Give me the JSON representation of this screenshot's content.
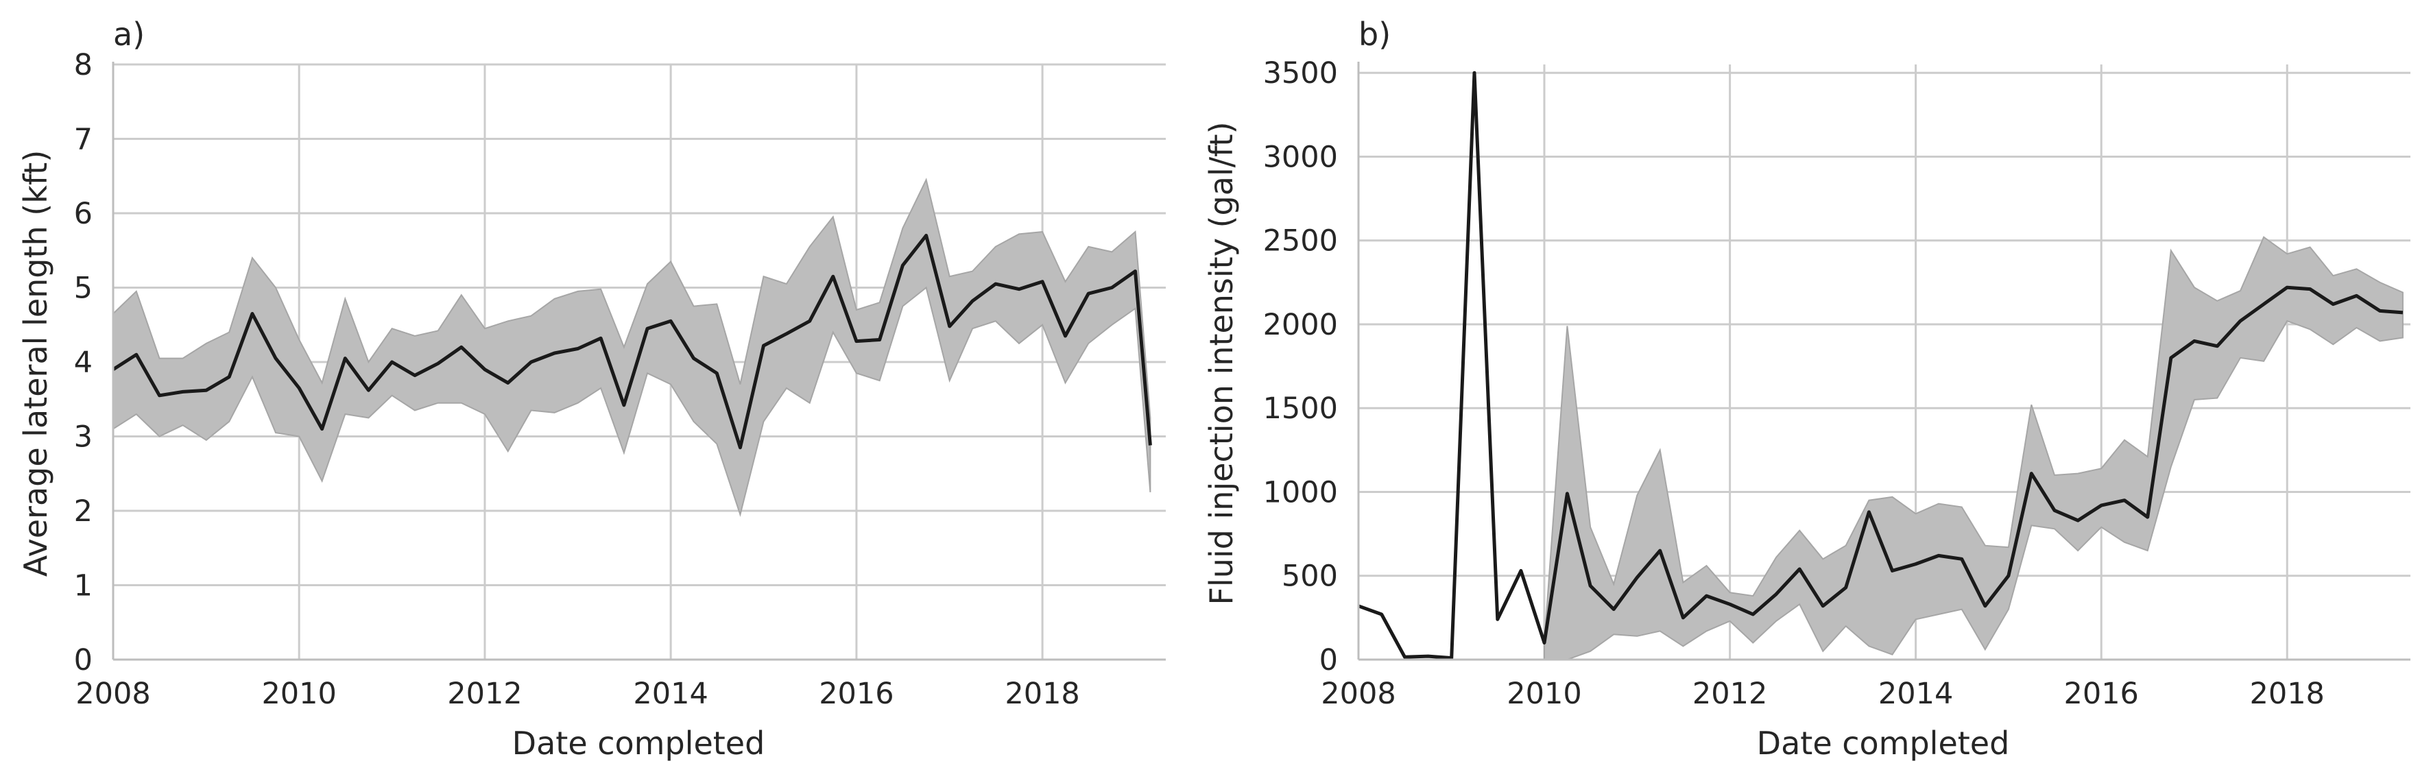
{
  "chart_data": [
    {
      "type": "line",
      "panel_label": "a)",
      "xlabel": "Date completed",
      "ylabel": "Average lateral length (kft)",
      "xlim": [
        "2008-01-01",
        "2019-05-01"
      ],
      "ylim": [
        0,
        8
      ],
      "x_ticks": [
        "2008",
        "2010",
        "2012",
        "2014",
        "2016",
        "2018"
      ],
      "y_ticks": [
        "0",
        "1",
        "2",
        "3",
        "4",
        "5",
        "6",
        "7",
        "8"
      ],
      "grid": true,
      "colors": {
        "line": "#1a1a1a",
        "band": "#bdbdbd"
      },
      "series": [
        {
          "x": [
            "2008-01-01",
            "2008-04-01",
            "2008-07-01",
            "2008-10-01",
            "2009-01-01",
            "2009-04-01",
            "2009-07-01",
            "2009-10-01",
            "2010-01-01",
            "2010-04-01",
            "2010-07-01",
            "2010-10-01",
            "2011-01-01",
            "2011-04-01",
            "2011-07-01",
            "2011-10-01",
            "2012-01-01",
            "2012-04-01",
            "2012-07-01",
            "2012-10-01",
            "2013-01-01",
            "2013-04-01",
            "2013-07-01",
            "2013-10-01",
            "2014-01-01",
            "2014-04-01",
            "2014-07-01",
            "2014-10-01",
            "2015-01-01",
            "2015-04-01",
            "2015-07-01",
            "2015-10-01",
            "2016-01-01",
            "2016-04-01",
            "2016-07-01",
            "2016-10-01",
            "2017-01-01",
            "2017-04-01",
            "2017-07-01",
            "2017-10-01",
            "2018-01-01",
            "2018-04-01",
            "2018-07-01",
            "2018-10-01",
            "2019-01-01",
            "2019-03-01"
          ],
          "values": [
            3.9,
            4.1,
            3.55,
            3.6,
            3.62,
            3.8,
            4.65,
            4.05,
            3.65,
            3.1,
            4.05,
            3.62,
            4.0,
            3.82,
            3.98,
            4.2,
            3.9,
            3.72,
            4.0,
            4.12,
            4.18,
            4.32,
            3.42,
            4.45,
            4.55,
            4.05,
            3.85,
            2.85,
            4.22,
            4.38,
            4.55,
            5.15,
            4.28,
            4.3,
            5.3,
            5.7,
            4.48,
            4.82,
            5.05,
            4.98,
            5.08,
            4.35,
            4.92,
            5.0,
            5.22,
            2.88
          ],
          "lower": [
            3.1,
            3.3,
            3.0,
            3.15,
            2.95,
            3.2,
            3.8,
            3.05,
            3.0,
            2.4,
            3.3,
            3.25,
            3.55,
            3.35,
            3.45,
            3.45,
            3.3,
            2.8,
            3.35,
            3.32,
            3.45,
            3.65,
            2.78,
            3.85,
            3.7,
            3.2,
            2.9,
            1.95,
            3.2,
            3.65,
            3.45,
            4.4,
            3.85,
            3.75,
            4.75,
            5.0,
            3.75,
            4.45,
            4.55,
            4.25,
            4.5,
            3.72,
            4.25,
            4.5,
            4.72,
            2.25
          ],
          "upper": [
            4.65,
            4.95,
            4.05,
            4.05,
            4.25,
            4.4,
            5.4,
            5.0,
            4.3,
            3.72,
            4.85,
            4.0,
            4.45,
            4.35,
            4.42,
            4.9,
            4.45,
            4.55,
            4.62,
            4.85,
            4.95,
            4.98,
            4.2,
            5.05,
            5.35,
            4.75,
            4.78,
            3.7,
            5.15,
            5.05,
            5.55,
            5.95,
            4.7,
            4.8,
            5.8,
            6.45,
            5.15,
            5.22,
            5.55,
            5.72,
            5.75,
            5.08,
            5.55,
            5.48,
            5.75,
            3.25
          ]
        }
      ]
    },
    {
      "type": "line",
      "panel_label": "b)",
      "xlabel": "Date completed",
      "ylabel": "Fluid injection intensity (gal/ft)",
      "xlim": [
        "2008-01-01",
        "2019-05-01"
      ],
      "ylim": [
        0,
        3550
      ],
      "x_ticks": [
        "2008",
        "2010",
        "2012",
        "2014",
        "2016",
        "2018"
      ],
      "y_ticks": [
        "0",
        "500",
        "1000",
        "1500",
        "2000",
        "2500",
        "3000",
        "3500"
      ],
      "grid": true,
      "colors": {
        "line": "#1a1a1a",
        "band": "#bdbdbd"
      },
      "series": [
        {
          "x": [
            "2008-01-01",
            "2008-04-01",
            "2008-07-01",
            "2008-10-01",
            "2009-01-01",
            "2009-04-01",
            "2009-07-01",
            "2009-10-01",
            "2010-01-01",
            "2010-04-01",
            "2010-07-01",
            "2010-10-01",
            "2011-01-01",
            "2011-04-01",
            "2011-07-01",
            "2011-10-01",
            "2012-01-01",
            "2012-04-01",
            "2012-07-01",
            "2012-10-01",
            "2013-01-01",
            "2013-04-01",
            "2013-07-01",
            "2013-10-01",
            "2014-01-01",
            "2014-04-01",
            "2014-07-01",
            "2014-10-01",
            "2015-01-01",
            "2015-04-01",
            "2015-07-01",
            "2015-10-01",
            "2016-01-01",
            "2016-04-01",
            "2016-07-01",
            "2016-10-01",
            "2017-01-01",
            "2017-04-01",
            "2017-07-01",
            "2017-10-01",
            "2018-01-01",
            "2018-04-01",
            "2018-07-01",
            "2018-10-01",
            "2019-01-01",
            "2019-04-01"
          ],
          "values": [
            320,
            270,
            15,
            20,
            10,
            3500,
            240,
            530,
            100,
            990,
            440,
            300,
            490,
            650,
            250,
            380,
            330,
            270,
            390,
            540,
            320,
            430,
            880,
            530,
            570,
            620,
            600,
            320,
            500,
            1110,
            890,
            830,
            920,
            950,
            850,
            1800,
            1900,
            1870,
            2020,
            2120,
            2220,
            2210,
            2120,
            2170,
            2080,
            2070
          ],
          "lower": [
            null,
            null,
            null,
            null,
            null,
            null,
            null,
            null,
            0,
            0,
            50,
            150,
            140,
            170,
            80,
            170,
            230,
            100,
            230,
            330,
            50,
            200,
            80,
            30,
            240,
            270,
            300,
            60,
            300,
            800,
            780,
            650,
            790,
            700,
            650,
            1150,
            1550,
            1560,
            1800,
            1780,
            2020,
            1970,
            1880,
            1980,
            1900,
            1920
          ],
          "upper": [
            null,
            null,
            null,
            null,
            null,
            null,
            null,
            null,
            100,
            1990,
            790,
            450,
            980,
            1250,
            460,
            560,
            400,
            380,
            610,
            770,
            600,
            680,
            950,
            970,
            870,
            930,
            910,
            680,
            670,
            1520,
            1100,
            1110,
            1140,
            1310,
            1210,
            2440,
            2220,
            2140,
            2200,
            2520,
            2420,
            2460,
            2290,
            2330,
            2250,
            2190
          ]
        }
      ]
    }
  ]
}
